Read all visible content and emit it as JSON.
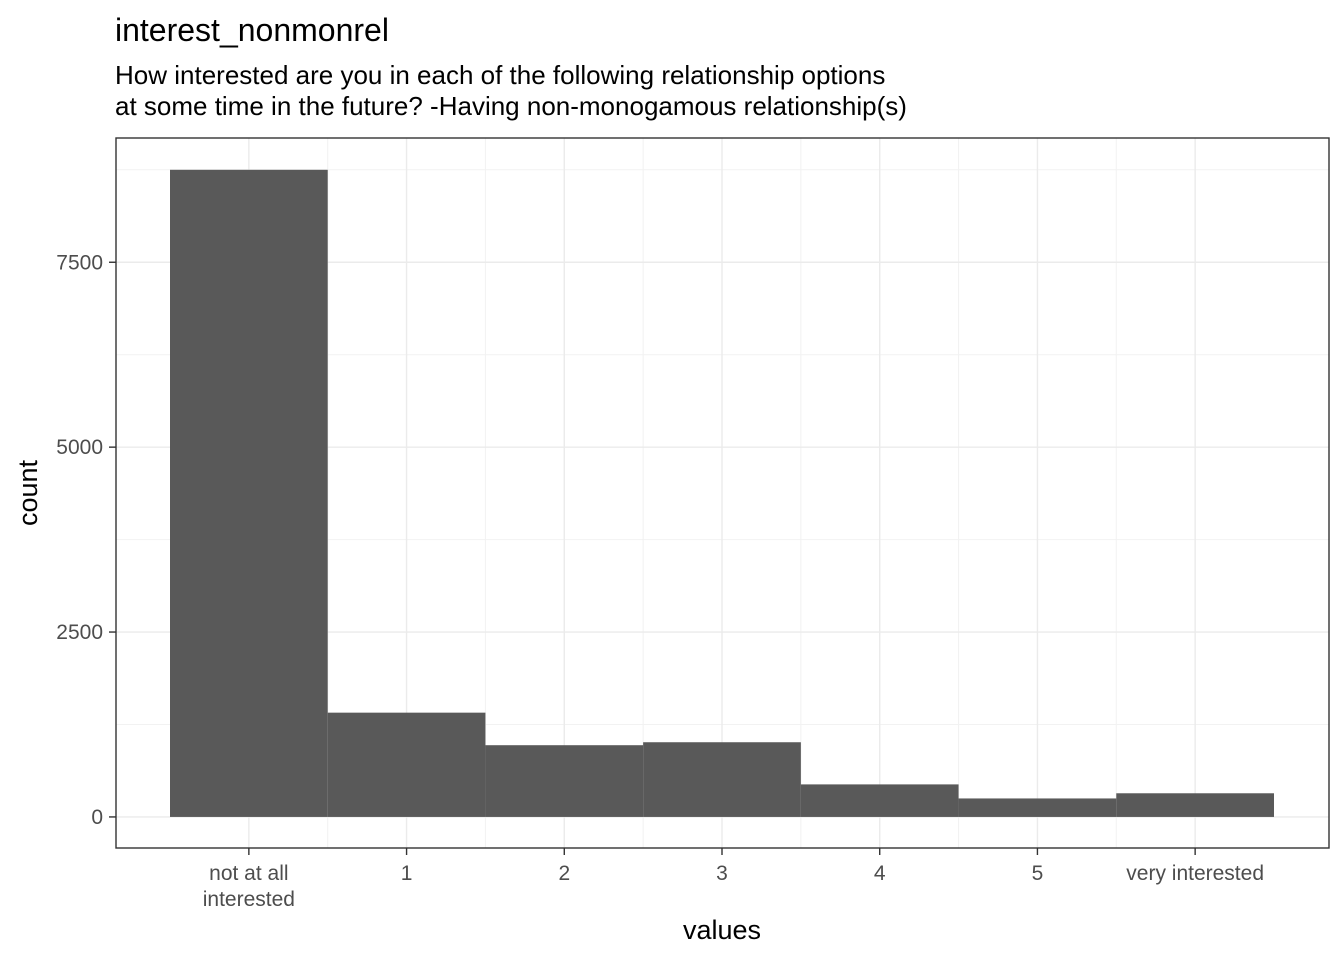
{
  "chart_data": {
    "type": "bar",
    "title": "interest_nonmonrel",
    "subtitle": [
      "How interested are you in each of the following relationship options",
      "at some time in the future? -Having non-monogamous relationship(s)"
    ],
    "xlabel": "values",
    "ylabel": "count",
    "categories": [
      [
        "not at all",
        "interested"
      ],
      [
        "1"
      ],
      [
        "2"
      ],
      [
        "3"
      ],
      [
        "4"
      ],
      [
        "5"
      ],
      [
        "very interested"
      ]
    ],
    "values": [
      8750,
      1410,
      970,
      1010,
      440,
      250,
      320
    ],
    "y_ticks": [
      0,
      2500,
      5000,
      7500
    ],
    "ylim": [
      -420,
      9180
    ],
    "grid": true,
    "bar_color": "#595959"
  }
}
